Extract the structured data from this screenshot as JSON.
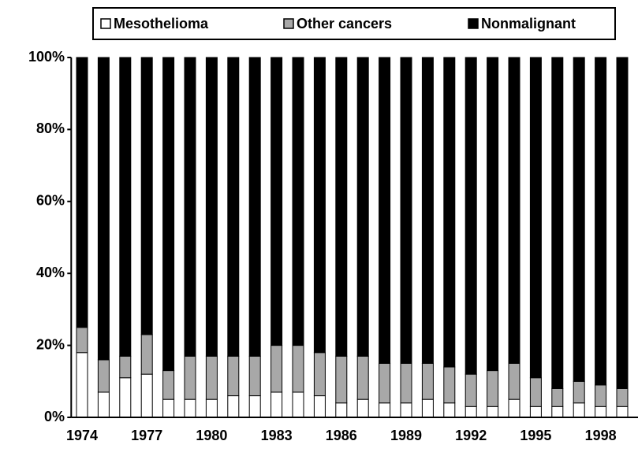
{
  "chart_data": {
    "type": "stacked_bar",
    "categories": [
      "1974",
      null,
      null,
      "1977",
      null,
      null,
      "1980",
      null,
      null,
      "1983",
      null,
      null,
      "1986",
      null,
      null,
      "1989",
      null,
      null,
      "1992",
      null,
      null,
      "1995",
      null,
      null,
      "1998",
      null
    ],
    "series": [
      {
        "name": "Mesothelioma",
        "color": "#ffffff",
        "values": [
          18,
          7,
          11,
          12,
          5,
          5,
          5,
          6,
          6,
          7,
          7,
          6,
          4,
          5,
          4,
          4,
          5,
          4,
          3,
          3,
          5,
          3,
          3,
          4,
          3,
          3
        ]
      },
      {
        "name": "Other cancers",
        "color": "#a8a8a8",
        "values": [
          7,
          9,
          6,
          11,
          8,
          12,
          12,
          11,
          11,
          13,
          13,
          12,
          13,
          12,
          11,
          11,
          10,
          10,
          9,
          10,
          10,
          8,
          5,
          6,
          6,
          5
        ]
      },
      {
        "name": "Nonmalignant",
        "color": "#000000",
        "values": [
          75,
          84,
          83,
          77,
          87,
          83,
          83,
          83,
          83,
          80,
          80,
          82,
          83,
          83,
          85,
          85,
          85,
          86,
          88,
          87,
          85,
          89,
          92,
          90,
          91,
          92
        ]
      }
    ],
    "ylim": [
      0,
      100
    ],
    "yticks": [
      {
        "value": 0,
        "label": "0%"
      },
      {
        "value": 20,
        "label": "20%"
      },
      {
        "value": 40,
        "label": "40%"
      },
      {
        "value": 60,
        "label": "60%"
      },
      {
        "value": 80,
        "label": "80%"
      },
      {
        "value": 100,
        "label": "100%"
      }
    ]
  }
}
